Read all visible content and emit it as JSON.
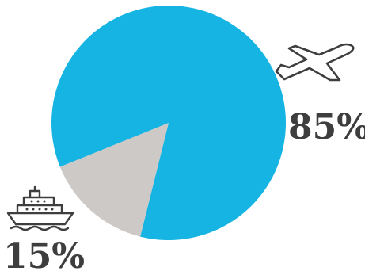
{
  "chart_data": {
    "type": "pie",
    "slices": [
      {
        "label": "85%",
        "value": 85,
        "color": "#15b4e2",
        "icon": "airplane-icon"
      },
      {
        "label": "15%",
        "value": 15,
        "color": "#ccc9c6",
        "icon": "cruise-ship-icon"
      }
    ]
  }
}
